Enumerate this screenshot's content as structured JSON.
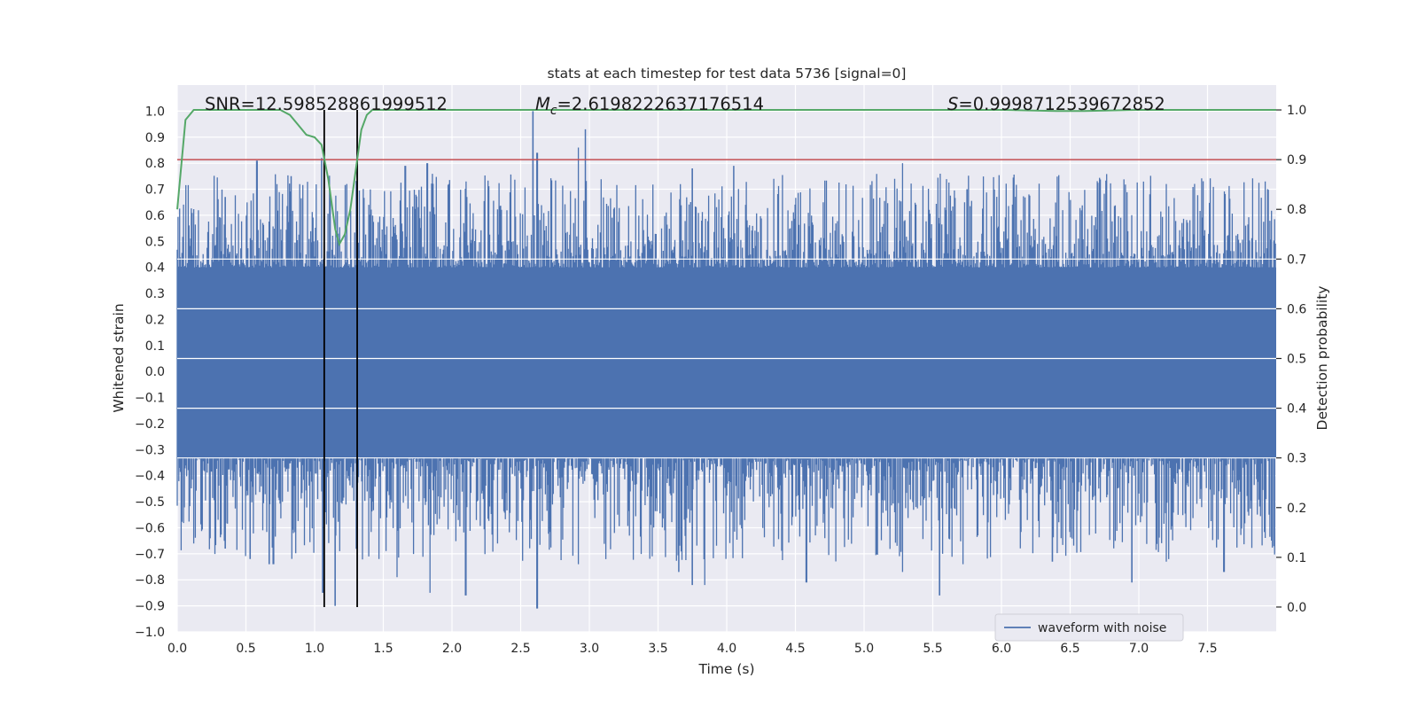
{
  "chart_data": {
    "type": "line",
    "title": "stats at each timestep for test data 5736 [signal=0]",
    "xlabel": "Time (s)",
    "ylabel_left": "Whitened strain",
    "ylabel_right": "Detection probability",
    "xlim": [
      0.0,
      8.0
    ],
    "ylim_left": [
      -1.0,
      1.1
    ],
    "ylim_right": [
      -0.05,
      1.05
    ],
    "x_ticks": [
      0.0,
      0.5,
      1.0,
      1.5,
      2.0,
      2.5,
      3.0,
      3.5,
      4.0,
      4.5,
      5.0,
      5.5,
      6.0,
      6.5,
      7.0,
      7.5
    ],
    "x_tick_labels": [
      "0.0",
      "0.5",
      "1.0",
      "1.5",
      "2.0",
      "2.5",
      "3.0",
      "3.5",
      "4.0",
      "4.5",
      "5.0",
      "5.5",
      "6.0",
      "6.5",
      "7.0",
      "7.5"
    ],
    "y_left_ticks": [
      1.0,
      0.9,
      0.8,
      0.7,
      0.6,
      0.5,
      0.4,
      0.3,
      0.2,
      0.1,
      0.0,
      -0.1,
      -0.2,
      -0.3,
      -0.4,
      -0.5,
      -0.6,
      -0.7,
      -0.8,
      -0.9,
      -1.0
    ],
    "y_left_tick_labels": [
      "1.0",
      "0.9",
      "0.8",
      "0.7",
      "0.6",
      "0.5",
      "0.4",
      "0.3",
      "0.2",
      "0.1",
      "0.0",
      "−0.1",
      "−0.2",
      "−0.3",
      "−0.4",
      "−0.5",
      "−0.6",
      "−0.7",
      "−0.8",
      "−0.9",
      "−1.0"
    ],
    "y_right_ticks": [
      1.0,
      0.9,
      0.8,
      0.7,
      0.6,
      0.5,
      0.4,
      0.3,
      0.2,
      0.1,
      0.0
    ],
    "y_right_tick_labels": [
      "1.0",
      "0.9",
      "0.8",
      "0.7",
      "0.6",
      "0.5",
      "0.4",
      "0.3",
      "0.2",
      "0.1",
      "0.0"
    ],
    "annotations": {
      "snr": "SNR=12.598528861999512",
      "mc_symbol": "M",
      "mc_sub": "c",
      "mc_value": "=2.6198222637176514",
      "s_symbol": "S",
      "s_value": "=0.9998712539672852"
    },
    "threshold": 0.9,
    "vlines": [
      1.07,
      1.31
    ],
    "legend": {
      "label": "waveform with noise",
      "location": "lower-right"
    },
    "series": [
      {
        "name": "waveform with noise",
        "axis": "left",
        "style": "filled-noise",
        "band_high": 0.4,
        "band_low": -0.33,
        "peaks_pos": [
          [
            0.58,
            0.81
          ],
          [
            0.83,
            0.75
          ],
          [
            1.05,
            0.82
          ],
          [
            1.66,
            0.79
          ],
          [
            1.82,
            0.8
          ],
          [
            2.59,
            1.0
          ],
          [
            2.62,
            0.84
          ],
          [
            2.97,
            0.93
          ],
          [
            2.92,
            0.86
          ],
          [
            3.75,
            0.78
          ],
          [
            4.05,
            0.79
          ],
          [
            5.28,
            0.8
          ],
          [
            5.75,
            0.7
          ],
          [
            7.2,
            0.72
          ],
          [
            7.92,
            0.73
          ],
          [
            0.35,
            0.67
          ],
          [
            6.2,
            0.68
          ]
        ],
        "peaks_neg": [
          [
            0.35,
            -0.68
          ],
          [
            0.53,
            -0.72
          ],
          [
            0.67,
            -0.74
          ],
          [
            0.7,
            -0.74
          ],
          [
            1.06,
            -0.85
          ],
          [
            1.15,
            -0.9
          ],
          [
            1.6,
            -0.79
          ],
          [
            1.84,
            -0.85
          ],
          [
            2.1,
            -0.86
          ],
          [
            2.62,
            -0.91
          ],
          [
            2.92,
            -0.74
          ],
          [
            3.65,
            -0.77
          ],
          [
            3.84,
            -0.82
          ],
          [
            3.75,
            -0.82
          ],
          [
            4.58,
            -0.81
          ],
          [
            5.28,
            -0.77
          ],
          [
            5.55,
            -0.86
          ],
          [
            5.72,
            -0.74
          ],
          [
            6.37,
            -0.73
          ],
          [
            6.95,
            -0.81
          ],
          [
            7.2,
            -0.73
          ],
          [
            7.62,
            -0.77
          ],
          [
            7.95,
            -0.55
          ]
        ]
      },
      {
        "name": "detection probability",
        "axis": "right",
        "x": [
          0.0,
          0.06,
          0.12,
          0.2,
          0.4,
          0.6,
          0.75,
          0.82,
          0.88,
          0.94,
          1.0,
          1.05,
          1.1,
          1.15,
          1.18,
          1.22,
          1.26,
          1.3,
          1.34,
          1.38,
          1.42,
          1.46,
          1.5,
          1.6,
          2.0,
          3.0,
          4.0,
          5.0,
          6.0,
          6.4,
          6.6,
          7.0,
          8.0
        ],
        "y": [
          0.8,
          0.98,
          1.0,
          1.0,
          1.0,
          1.0,
          1.0,
          0.99,
          0.97,
          0.95,
          0.945,
          0.93,
          0.86,
          0.76,
          0.73,
          0.75,
          0.8,
          0.88,
          0.96,
          0.99,
          1.0,
          1.0,
          1.0,
          1.0,
          1.0,
          1.0,
          1.0,
          1.0,
          1.0,
          0.998,
          0.998,
          1.0,
          1.0
        ]
      }
    ],
    "colors": {
      "plot_bg": "#eaeaf2",
      "grid": "#ffffff",
      "waveform": "#4c72b0",
      "probability": "#55a868",
      "threshold": "#c44e52",
      "vline": "#000000"
    }
  }
}
